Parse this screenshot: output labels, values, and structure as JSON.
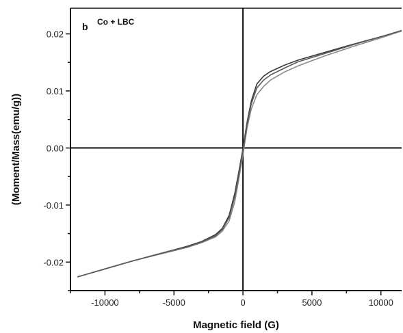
{
  "chart_data": {
    "type": "line",
    "panel_label": "b",
    "annotation": "Co + LBC",
    "xlabel": "Magnetic field (G)",
    "ylabel": "(Moment/Mass(emu/g))",
    "xlim": [
      -12500,
      11500
    ],
    "ylim": [
      -0.025,
      0.0245
    ],
    "xticks": [
      -10000,
      -5000,
      0,
      5000,
      10000
    ],
    "xtick_labels": [
      "-10000",
      "-5000",
      "0",
      "5000",
      "10000"
    ],
    "yticks": [
      -0.02,
      -0.01,
      0.0,
      0.01,
      0.02
    ],
    "ytick_labels": [
      "-0.02",
      "-0.01",
      "0.00",
      "0.01",
      "0.02"
    ],
    "grid": false,
    "zero_lines": true,
    "series": [
      {
        "color": "#3a3a3a",
        "points": [
          [
            -12000,
            -0.0226
          ],
          [
            -10000,
            -0.0212
          ],
          [
            -8000,
            -0.0198
          ],
          [
            -6000,
            -0.0185
          ],
          [
            -4000,
            -0.0172
          ],
          [
            -3000,
            -0.0164
          ],
          [
            -2000,
            -0.0152
          ],
          [
            -1500,
            -0.0141
          ],
          [
            -1000,
            -0.0118
          ],
          [
            -600,
            -0.008
          ],
          [
            -300,
            -0.0042
          ],
          [
            0,
            -0.0001
          ],
          [
            300,
            0.0045
          ],
          [
            600,
            0.0082
          ],
          [
            1000,
            0.0112
          ],
          [
            1500,
            0.0126
          ],
          [
            2000,
            0.0134
          ],
          [
            3000,
            0.0145
          ],
          [
            4000,
            0.0154
          ],
          [
            6000,
            0.0168
          ],
          [
            8000,
            0.0182
          ],
          [
            10000,
            0.0195
          ],
          [
            11500,
            0.0205
          ]
        ]
      },
      {
        "color": "#8a8a8a",
        "points": [
          [
            -12000,
            -0.0226
          ],
          [
            -10000,
            -0.0212
          ],
          [
            -8000,
            -0.0198
          ],
          [
            -6000,
            -0.0186
          ],
          [
            -4000,
            -0.0174
          ],
          [
            -3000,
            -0.0166
          ],
          [
            -2000,
            -0.0156
          ],
          [
            -1500,
            -0.0146
          ],
          [
            -1000,
            -0.0128
          ],
          [
            -600,
            -0.0095
          ],
          [
            -300,
            -0.0055
          ],
          [
            0,
            -0.0012
          ],
          [
            300,
            0.0035
          ],
          [
            600,
            0.0068
          ],
          [
            1000,
            0.0093
          ],
          [
            1500,
            0.0108
          ],
          [
            2000,
            0.0119
          ],
          [
            3000,
            0.0133
          ],
          [
            4000,
            0.0144
          ],
          [
            6000,
            0.0162
          ],
          [
            8000,
            0.0178
          ],
          [
            10000,
            0.0193
          ],
          [
            11500,
            0.0205
          ]
        ]
      },
      {
        "color": "#5a5a5a",
        "points": [
          [
            -12000,
            -0.0226
          ],
          [
            -10000,
            -0.0212
          ],
          [
            -8000,
            -0.0198
          ],
          [
            -6000,
            -0.0185
          ],
          [
            -4000,
            -0.0173
          ],
          [
            -3000,
            -0.0165
          ],
          [
            -2000,
            -0.0154
          ],
          [
            -1500,
            -0.0143
          ],
          [
            -1000,
            -0.0122
          ],
          [
            -600,
            -0.0086
          ],
          [
            -300,
            -0.0047
          ],
          [
            0,
            -0.0004
          ],
          [
            300,
            0.0041
          ],
          [
            600,
            0.0077
          ],
          [
            1000,
            0.0105
          ],
          [
            1500,
            0.0119
          ],
          [
            2000,
            0.0128
          ],
          [
            3000,
            0.014
          ],
          [
            4000,
            0.0151
          ],
          [
            6000,
            0.0166
          ],
          [
            8000,
            0.0181
          ],
          [
            10000,
            0.0195
          ],
          [
            11500,
            0.0206
          ]
        ]
      }
    ]
  }
}
